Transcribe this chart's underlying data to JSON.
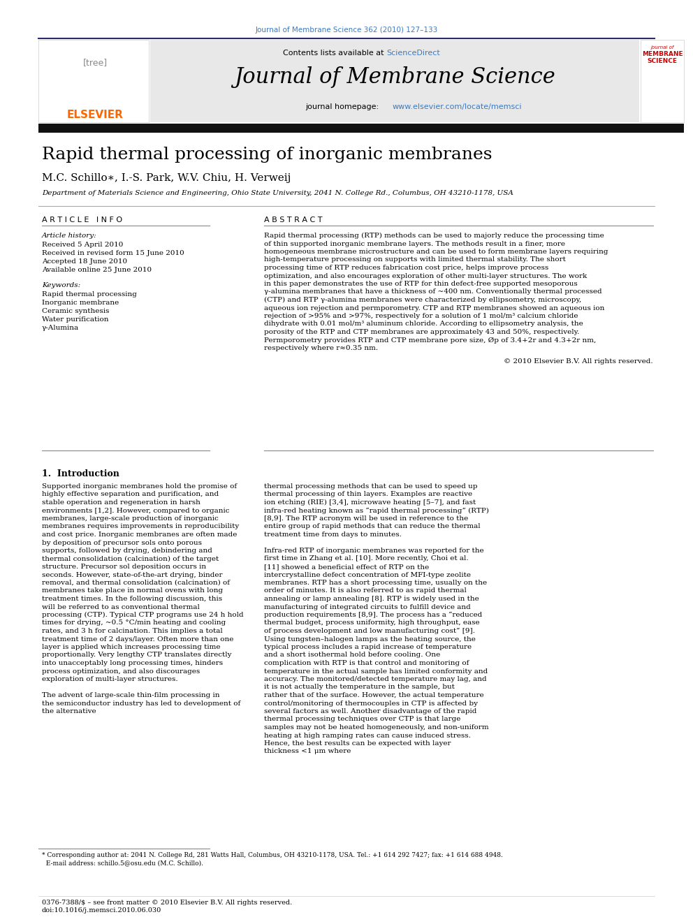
{
  "page_title": "Journal of Membrane Science 362 (2010) 127–133",
  "journal_name": "Journal of Membrane Science",
  "sciencedirect_color": "#3d7abf",
  "homepage_url_color": "#3d7abf",
  "header_bg": "#e8e8e8",
  "article_title": "Rapid thermal processing of inorganic membranes",
  "authors": "M.C. Schillo∗, I.-S. Park, W.V. Chiu, H. Verweij",
  "affiliation": "Department of Materials Science and Engineering, Ohio State University, 2041 N. College Rd., Columbus, OH 43210-1178, USA",
  "article_info_header": "A R T I C L E   I N F O",
  "abstract_header": "A B S T R A C T",
  "article_history_label": "Article history:",
  "received": "Received 5 April 2010",
  "received_revised": "Received in revised form 15 June 2010",
  "accepted": "Accepted 18 June 2010",
  "available": "Available online 25 June 2010",
  "keywords_label": "Keywords:",
  "keywords": [
    "Rapid thermal processing",
    "Inorganic membrane",
    "Ceramic synthesis",
    "Water purification",
    "γ-Alumina"
  ],
  "abstract_text": "Rapid thermal processing (RTP) methods can be used to majorly reduce the processing time of thin supported inorganic membrane layers. The methods result in a finer, more homogeneous membrane microstructure and can be used to form membrane layers requiring high-temperature processing on supports with limited thermal stability. The short processing time of RTP reduces fabrication cost price, helps improve process optimization, and also encourages exploration of other multi-layer structures. The work in this paper demonstrates the use of RTP for thin defect-free supported mesoporous γ-alumina membranes that have a thickness of ~400 nm. Conventionally thermal processed (CTP) and RTP γ-alumina membranes were characterized by ellipsometry, microscopy, aqueous ion rejection and permporometry. CTP and RTP membranes showed an aqueous ion rejection of >95% and >97%, respectively for a solution of 1 mol/m³ calcium chloride dihydrate with 0.01 mol/m³ aluminum chloride. According to ellipsometry analysis, the porosity of the RTP and CTP membranes are approximately 43 and 50%, respectively. Permporometry provides RTP and CTP membrane pore size, Øp of 3.4+2r and 4.3+2r nm, respectively where r≈0.35 nm.",
  "copyright_line": "© 2010 Elsevier B.V. All rights reserved.",
  "section1_header": "1.  Introduction",
  "intro_col1": "    Supported inorganic membranes hold the promise of highly effective separation and purification, and stable operation and regeneration in harsh environments [1,2]. However, compared to organic membranes, large-scale production of inorganic membranes requires improvements in reproducibility and cost price. Inorganic membranes are often made by deposition of precursor sols onto porous supports, followed by drying, debindering and thermal consolidation (calcination) of the target structure. Precursor sol deposition occurs in seconds. However, state-of-the-art drying, binder removal, and thermal consolidation (calcination) of membranes take place in normal ovens with long treatment times. In the following discussion, this will be referred to as conventional thermal processing (CTP). Typical CTP programs use 24 h hold times for drying, ~0.5 °C/min heating and cooling rates, and 3 h for calcination. This implies a total treatment time of 2 days/layer. Often more than one layer is applied which increases processing time proportionally. Very lengthy CTP translates directly into unacceptably long processing times, hinders process optimization, and also discourages exploration of multi-layer structures.\n    The advent of large-scale thin-film processing in the semiconductor industry has led to development of the alternative",
  "intro_col2": "thermal processing methods that can be used to speed up thermal processing of thin layers. Examples are reactive ion etching (RIE) [3,4], microwave heating [5–7], and fast infra-red heating known as “rapid thermal processing” (RTP) [8,9]. The RTP acronym will be used in reference to the entire group of rapid methods that can reduce the thermal treatment time from days to minutes.\n    Infra-red RTP of inorganic membranes was reported for the first time in Zhang et al. [10]. More recently, Choi et al. [11] showed a beneficial effect of RTP on the intercrystalline defect concentration of MFI-type zeolite membranes. RTP has a short processing time, usually on the order of minutes. It is also referred to as rapid thermal annealing or lamp annealing [8]. RTP is widely used in the manufacturing of integrated circuits to fulfill device and production requirements [8,9]. The process has a “reduced thermal budget, process uniformity, high throughput, ease of process development and low manufacturing cost” [9]. Using tungsten–halogen lamps as the heating source, the typical process includes a rapid increase of temperature and a short isothermal hold before cooling. One complication with RTP is that control and monitoring of temperature in the actual sample has limited conformity and accuracy. The monitored/detected temperature may lag, and it is not actually the temperature in the sample, but rather that of the surface. However, the actual temperature control/monitoring of thermocouples in CTP is affected by several factors as well. Another disadvantage of the rapid thermal processing techniques over CTP is that large samples may not be heated homogeneously, and non-uniform heating at high ramping rates can cause induced stress. Hence, the best results can be expected with layer thickness <1 μm where",
  "footnote_text": "* Corresponding author at: 2041 N. College Rd, 281 Watts Hall, Columbus, OH 43210-1178, USA. Tel.: +1 614 292 7427; fax: +1 614 688 4948.\n  E-mail address: schillo.5@osu.edu (M.C. Schillo).",
  "footer_text": "0376-7388/$ – see front matter © 2010 Elsevier B.V. All rights reserved.\ndoi:10.1016/j.memsci.2010.06.030",
  "elsevier_orange": "#FF6600",
  "journal_red": "#cc0000",
  "link_blue": "#3d7abf"
}
